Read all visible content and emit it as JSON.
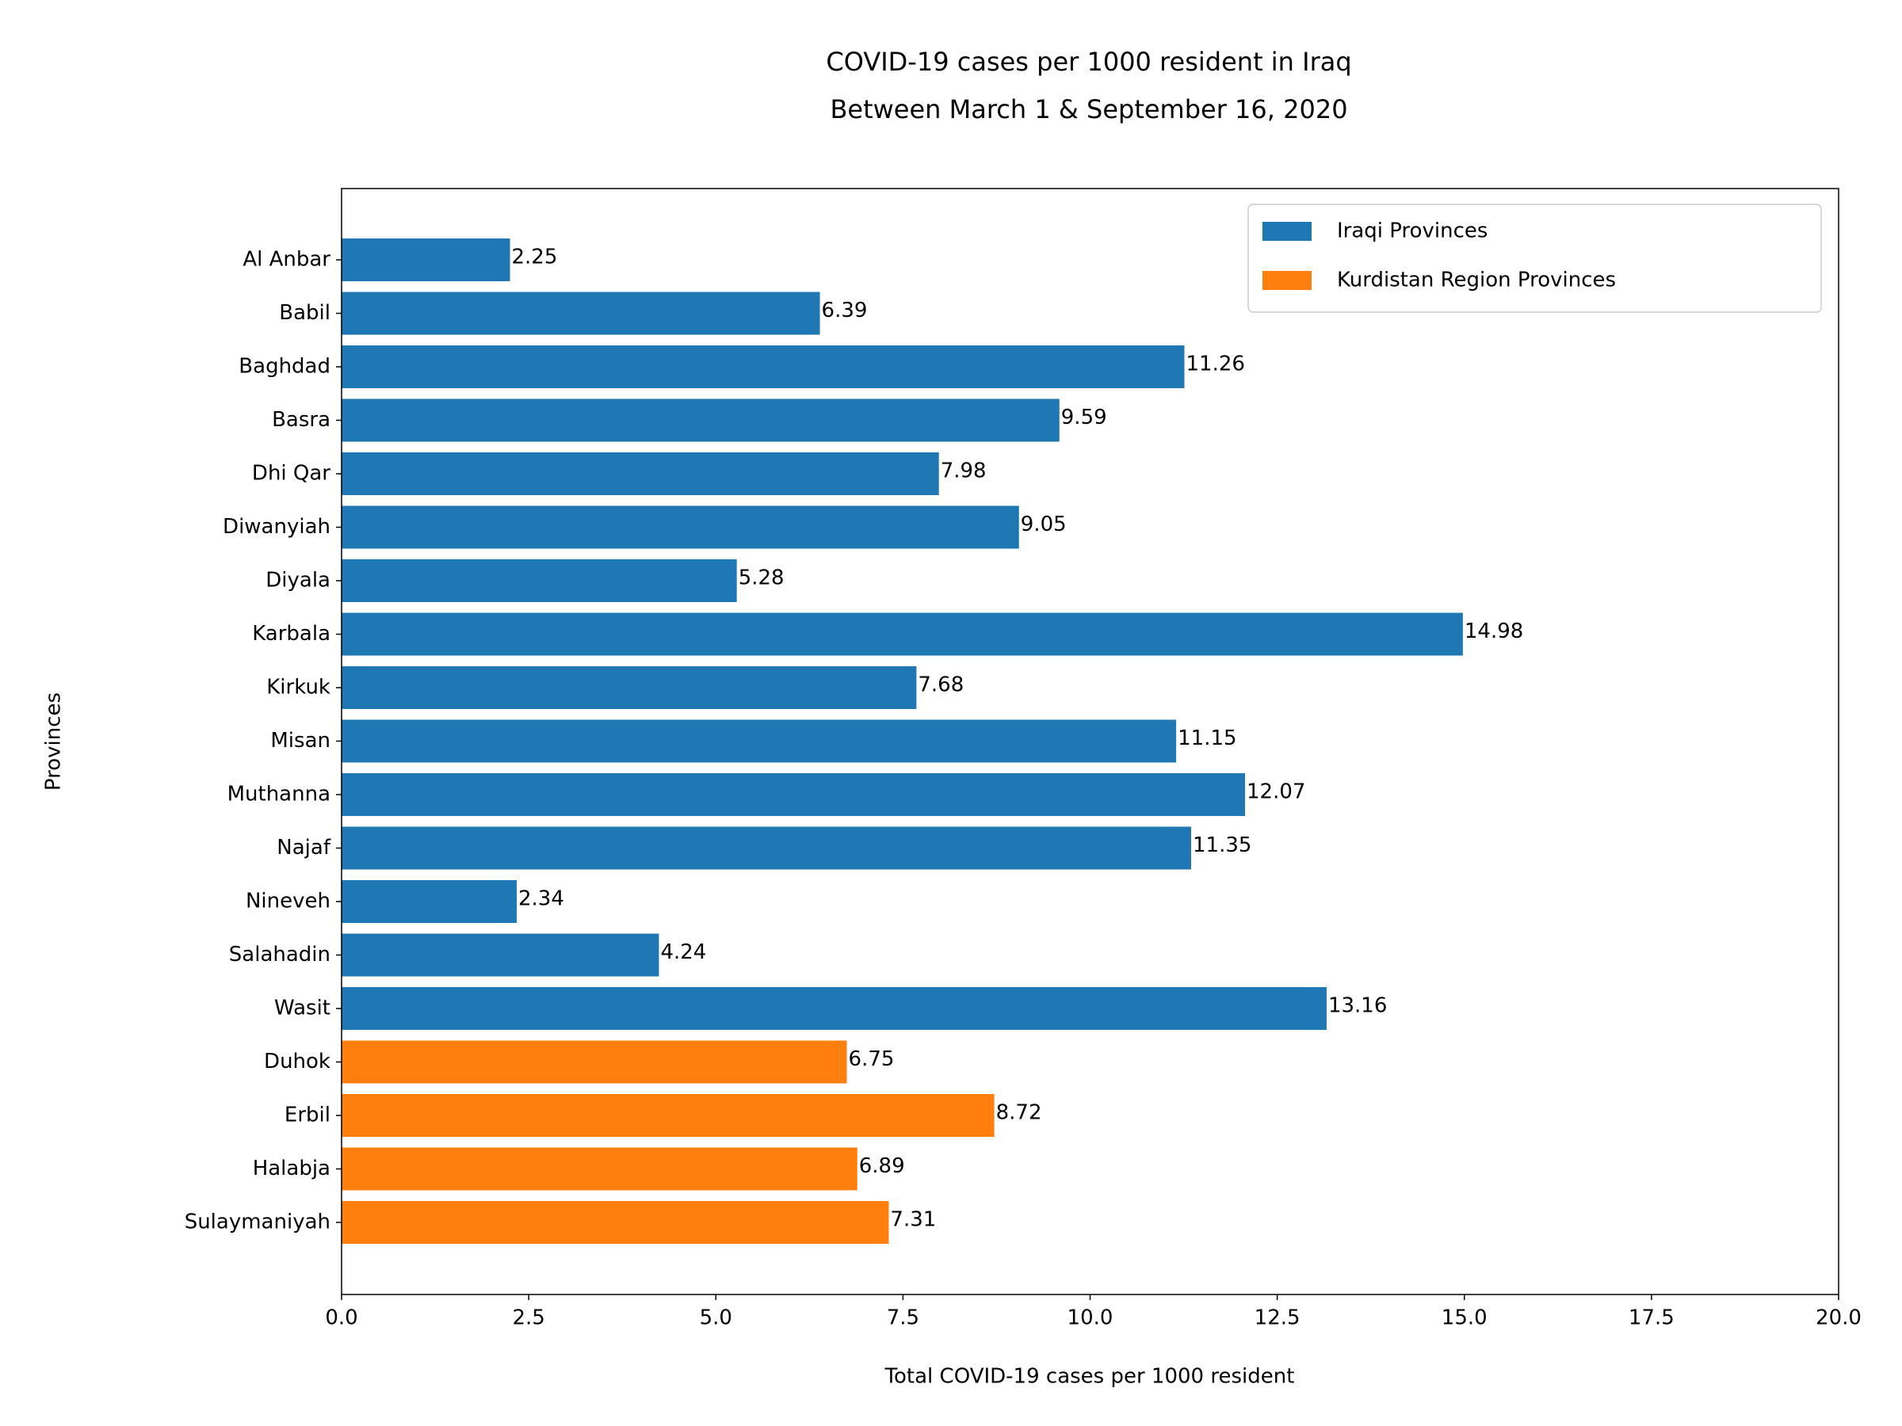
{
  "chart_data": {
    "type": "barh",
    "title": [
      "COVID-19 cases per 1000 resident in Iraq",
      "Between March 1 & September 16, 2020"
    ],
    "xlabel": "Total COVID-19 cases per 1000 resident",
    "ylabel": "Provinces",
    "categories": [
      "Al Anbar",
      "Babil",
      "Baghdad",
      "Basra",
      "Dhi Qar",
      "Diwanyiah",
      "Diyala",
      "Karbala",
      "Kirkuk",
      "Misan",
      "Muthanna",
      "Najaf",
      "Nineveh",
      "Salahadin",
      "Wasit",
      "Duhok",
      "Erbil",
      "Halabja",
      "Sulaymaniyah"
    ],
    "series": [
      {
        "name": "Iraqi Provinces",
        "color": "#1f77b4",
        "values": [
          2.25,
          6.39,
          11.26,
          9.59,
          7.98,
          9.05,
          5.28,
          14.98,
          7.68,
          11.15,
          12.07,
          11.35,
          2.34,
          4.24,
          13.16,
          null,
          null,
          null,
          null
        ]
      },
      {
        "name": "Kurdistan Region Provinces",
        "color": "#ff7f0e",
        "values": [
          null,
          null,
          null,
          null,
          null,
          null,
          null,
          null,
          null,
          null,
          null,
          null,
          null,
          null,
          null,
          6.75,
          8.72,
          6.89,
          7.31
        ]
      }
    ],
    "xlim": [
      0,
      20
    ],
    "xticks": [
      {
        "value": 0,
        "label": "0.0"
      },
      2.5,
      {
        "value": 5,
        "label": "5.0"
      },
      7.5,
      {
        "value": 10,
        "label": "10.0"
      },
      12.5,
      {
        "value": 15,
        "label": "15.0"
      },
      17.5,
      {
        "value": 20,
        "label": "20.0"
      }
    ],
    "legend": "upper right",
    "grid": false
  }
}
